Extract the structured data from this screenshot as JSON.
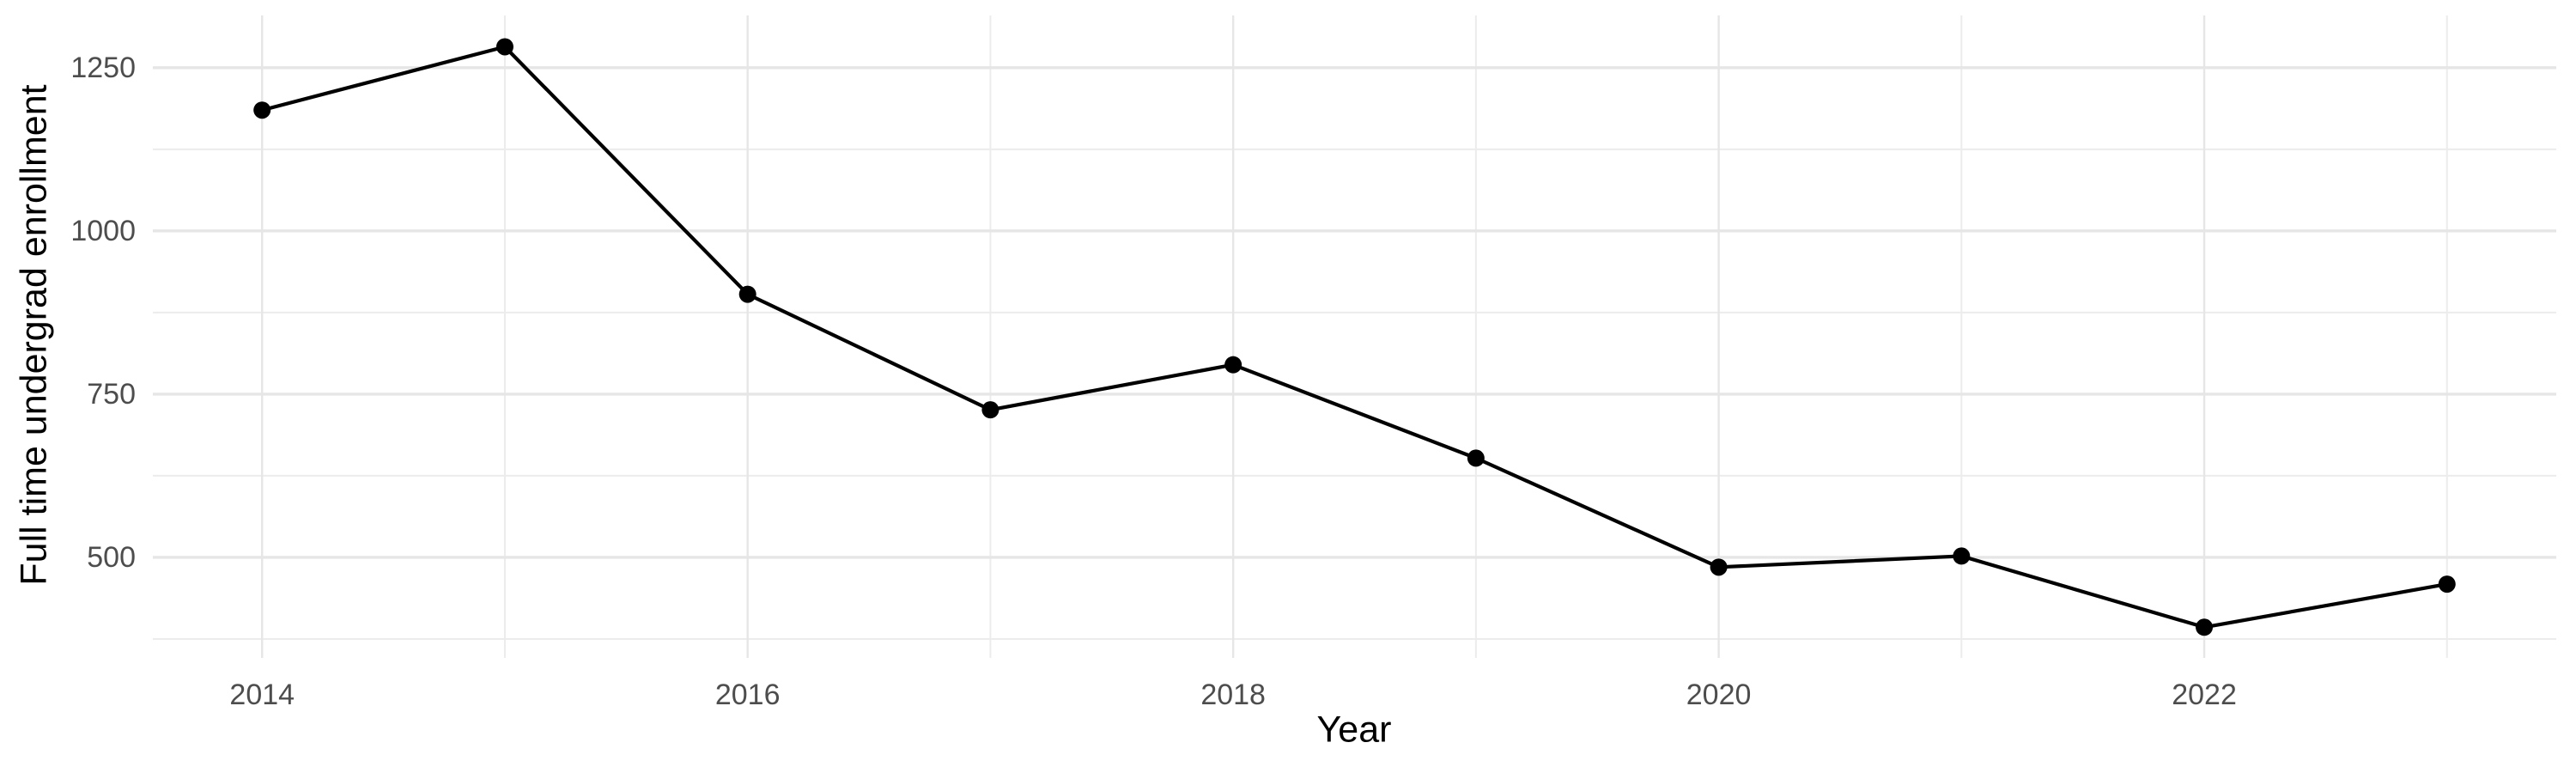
{
  "figure": {
    "background": "#FFFFFF"
  },
  "chart_data": {
    "type": "line",
    "title": "",
    "xlabel": "Year",
    "ylabel": "Full time undergrad enrollment",
    "x": [
      2014,
      2015,
      2016,
      2017,
      2018,
      2019,
      2020,
      2021,
      2022,
      2023
    ],
    "values": [
      1185,
      1282,
      903,
      726,
      795,
      652,
      485,
      502,
      393,
      459
    ],
    "series": [
      {
        "name": "Full time undergrad enrollment",
        "values": [
          1185,
          1282,
          903,
          726,
          795,
          652,
          485,
          502,
          393,
          459
        ]
      }
    ],
    "xlim": [
      2013.55,
      2023.45
    ],
    "ylim": [
      346,
      1330
    ],
    "x_tick_positions": [
      2014,
      2016,
      2018,
      2020,
      2022
    ],
    "x_tick_labels": [
      "2014",
      "2016",
      "2018",
      "2020",
      "2022"
    ],
    "x_minor_gridlines": [
      2015,
      2017,
      2019,
      2021,
      2023
    ],
    "y_tick_positions": [
      500,
      750,
      1000,
      1250
    ],
    "y_tick_labels": [
      "500",
      "750",
      "1000",
      "1250"
    ],
    "y_minor_gridlines": [
      375,
      625,
      875,
      1125
    ],
    "grid": true,
    "legend_position": "none",
    "marker": "filled-circle",
    "colors": {
      "line": "#000000",
      "point": "#000000",
      "grid_major": "#E6E6E6",
      "grid_minor": "#ECECEC",
      "tick_label": "#4D4D4D",
      "axis_title": "#000000",
      "background": "#FFFFFF"
    }
  }
}
